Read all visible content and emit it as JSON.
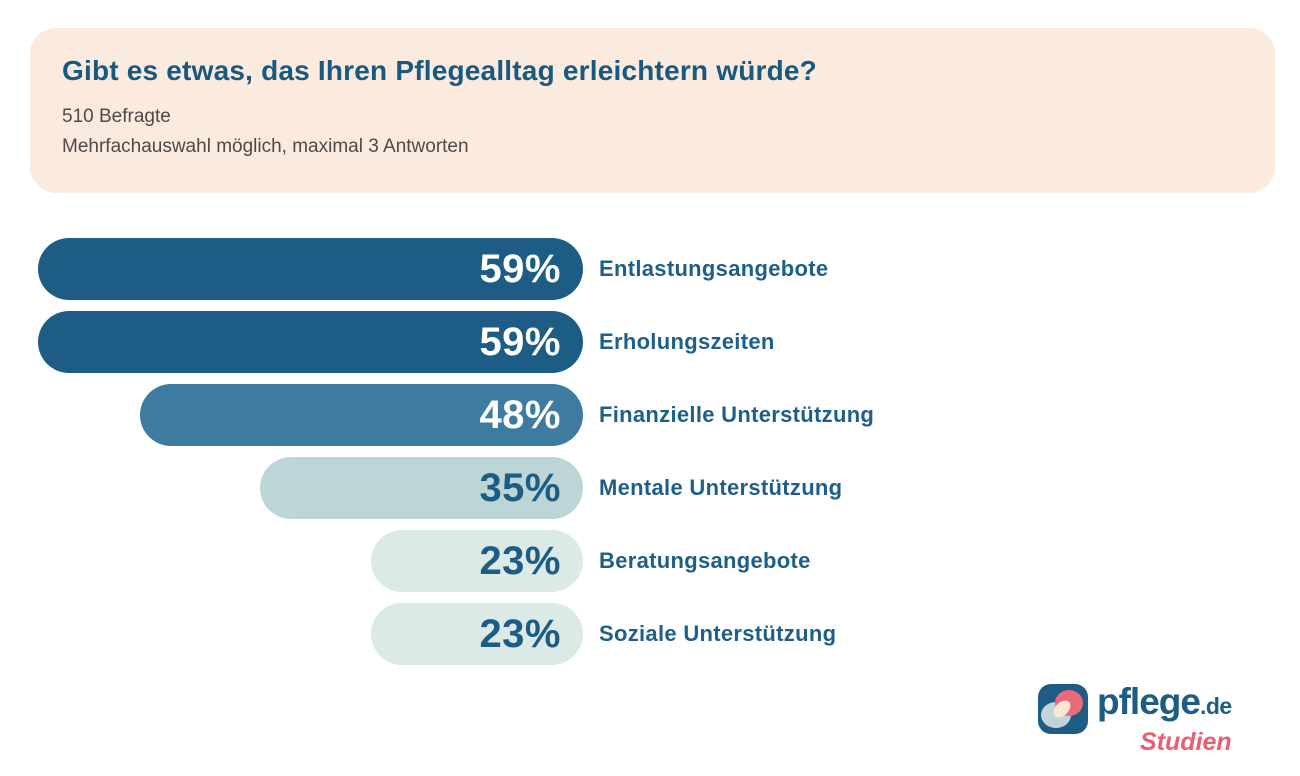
{
  "header": {
    "title": "Gibt es etwas, das Ihren Pflegealltag erleichtern würde?",
    "respondents": "510 Befragte",
    "note": "Mehrfachauswahl möglich, maximal 3 Antworten"
  },
  "chart_data": {
    "type": "bar",
    "orientation": "horizontal",
    "alignment": "bars-right-aligned-to-common-edge",
    "title": "Gibt es etwas, das Ihren Pflegealltag erleichtern würde?",
    "subtitle": "510 Befragte – Mehrfachauswahl möglich, maximal 3 Antworten",
    "categories": [
      "Entlastungsangebote",
      "Erholungszeiten",
      "Finanzielle Unterstützung",
      "Mentale Unterstützung",
      "Beratungsangebote",
      "Soziale Unterstützung"
    ],
    "values": [
      59,
      59,
      48,
      35,
      23,
      23
    ],
    "value_suffix": "%",
    "xlim": [
      0,
      59
    ],
    "grid": false,
    "legend": false,
    "axes_visible": false,
    "bar_colors": [
      "#1d5c85",
      "#1d5c85",
      "#3d7ca0",
      "#bcd6d7",
      "#dbe9e7",
      "#dbe9e7"
    ],
    "value_label_colors": [
      "#ffffff",
      "#ffffff",
      "#ffffff",
      "#1d5c85",
      "#1d5c85",
      "#1d5c85"
    ],
    "category_label_color": "#1d5f8a"
  },
  "logo": {
    "brand": "pflege",
    "tld": ".de",
    "sub": "Studien",
    "colors": {
      "brand_text": "#1d5c85",
      "sub_text": "#e85f72",
      "icon_bg": "#1d5c85",
      "icon_coral": "#ea6a7b",
      "icon_blue": "#c3d3da",
      "icon_cream": "#f8e7d4"
    }
  },
  "palette": {
    "card_bg": "#fbeade",
    "title_text": "#17597f",
    "subtitle_text": "#4e4a47",
    "page_bg": "#ffffff"
  }
}
